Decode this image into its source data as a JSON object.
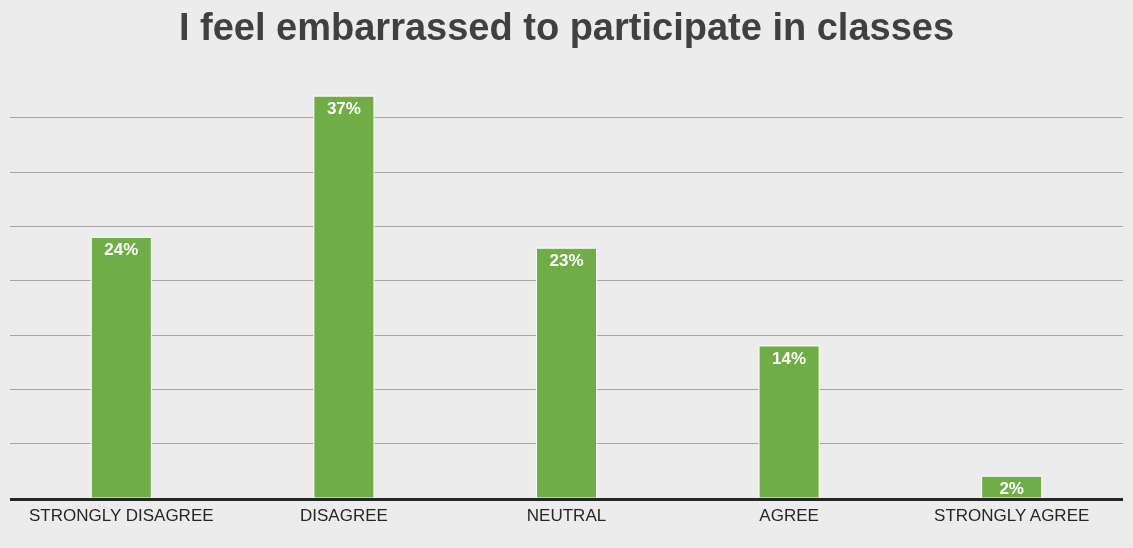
{
  "chart_data": {
    "type": "bar",
    "title": "I feel embarrassed to participate in classes",
    "categories": [
      "STRONGLY DISAGREE",
      "DISAGREE",
      "NEUTRAL",
      "AGREE",
      "STRONGLY AGREE"
    ],
    "values": [
      24,
      37,
      23,
      14,
      2
    ],
    "color": "#70ad47",
    "value_labels": [
      "24%",
      "37%",
      "23%",
      "14%",
      "2%"
    ],
    "tick_labels": "x",
    "grid": "y"
  }
}
